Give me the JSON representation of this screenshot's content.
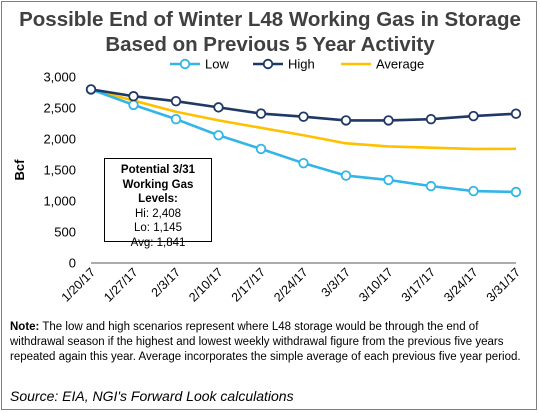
{
  "title_line1": "Possible End of Winter L48 Working Gas in Storage",
  "title_line2": "Based on Previous 5 Year Activity",
  "infobox": {
    "heading_line1": "Potential 3/31",
    "heading_line2": "Working Gas Levels:",
    "hi": "Hi: 2,408",
    "lo": "Lo: 1,145",
    "avg": "Avg: 1,841"
  },
  "note_label": "Note:",
  "note_text": " The low and high scenarios represent where L48 storage would be through the end of withdrawal season if the highest and lowest weekly withdrawal figure from the previous five years repeated again this year. Average incorporates the simple average of each previous five year period.",
  "source": "Source: EIA, NGI's Forward Look calculations",
  "chart_data": {
    "type": "line",
    "x": [
      "1/20/17",
      "1/27/17",
      "2/3/17",
      "2/10/17",
      "2/17/17",
      "2/24/17",
      "3/3/17",
      "3/10/17",
      "3/17/17",
      "3/24/17",
      "3/31/17"
    ],
    "ylabel": "Bcf",
    "ylim": [
      0,
      3000
    ],
    "yticks": [
      0,
      500,
      1000,
      1500,
      2000,
      2500,
      3000
    ],
    "ytick_labels": [
      "0",
      "500",
      "1,000",
      "1,500",
      "2,000",
      "2,500",
      "3,000"
    ],
    "legend_position": "top",
    "grid": false,
    "series": [
      {
        "name": "Low",
        "color": "#33b5e5",
        "marker": "circle-open",
        "values": [
          2800,
          2550,
          2320,
          2060,
          1840,
          1610,
          1410,
          1340,
          1240,
          1160,
          1145
        ]
      },
      {
        "name": "High",
        "color": "#1f3864",
        "marker": "circle-open",
        "values": [
          2800,
          2690,
          2610,
          2510,
          2410,
          2360,
          2300,
          2300,
          2320,
          2370,
          2408
        ]
      },
      {
        "name": "Average",
        "color": "#ffc000",
        "marker": "none",
        "values": [
          2800,
          2620,
          2440,
          2300,
          2180,
          2060,
          1930,
          1880,
          1860,
          1840,
          1841
        ]
      }
    ]
  }
}
